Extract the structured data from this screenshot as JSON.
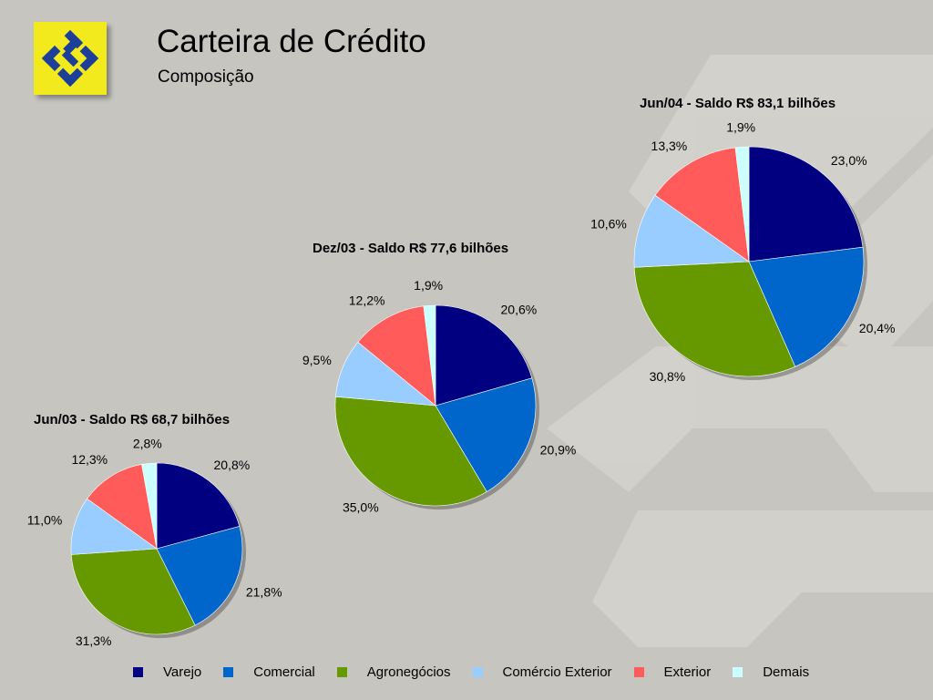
{
  "header": {
    "title": "Carteira de Crédito",
    "subtitle": "Composição"
  },
  "colors": {
    "background": "#c6c5c0",
    "logo_background": "#f2ea1c",
    "logo_mark": "#1d3f9a",
    "Varejo": "#000080",
    "Comercial": "#0066cc",
    "Agronegócios": "#669900",
    "Comércio Exterior": "#99ccff",
    "Exterior": "#ff5b5b",
    "Demais": "#ccffff"
  },
  "chart_data": [
    {
      "type": "pie",
      "title": "Jun/03 - Saldo R$ 68,7 bilhões",
      "labels": [
        "Varejo",
        "Comercial",
        "Agronegócios",
        "Comércio Exterior",
        "Exterior",
        "Demais"
      ],
      "values": [
        20.8,
        21.8,
        31.3,
        11.0,
        12.3,
        2.8
      ],
      "value_labels": [
        "20,8%",
        "21,8%",
        "31,3%",
        "11,0%",
        "12,3%",
        "2,8%"
      ]
    },
    {
      "type": "pie",
      "title": "Dez/03 - Saldo R$ 77,6 bilhões",
      "labels": [
        "Varejo",
        "Comercial",
        "Agronegócios",
        "Comércio Exterior",
        "Exterior",
        "Demais"
      ],
      "values": [
        20.6,
        20.9,
        35.0,
        9.5,
        12.2,
        1.9
      ],
      "value_labels": [
        "20,6%",
        "20,9%",
        "35,0%",
        "9,5%",
        "12,2%",
        "1,9%"
      ]
    },
    {
      "type": "pie",
      "title": "Jun/04 - Saldo R$ 83,1 bilhões",
      "labels": [
        "Varejo",
        "Comercial",
        "Agronegócios",
        "Comércio Exterior",
        "Exterior",
        "Demais"
      ],
      "values": [
        23.0,
        20.4,
        30.8,
        10.6,
        13.3,
        1.9
      ],
      "value_labels": [
        "23,0%",
        "20,4%",
        "30,8%",
        "10,6%",
        "13,3%",
        "1,9%"
      ]
    }
  ],
  "legend": {
    "items": [
      "Varejo",
      "Comercial",
      "Agronegócios",
      "Comércio Exterior",
      "Exterior",
      "Demais"
    ],
    "position": "bottom"
  }
}
